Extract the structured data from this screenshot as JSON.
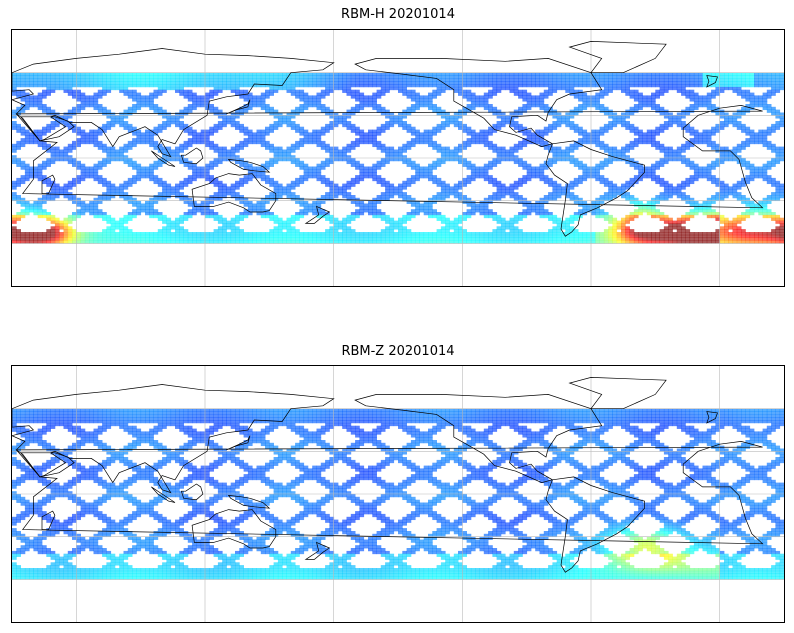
{
  "panels": [
    {
      "id": "top",
      "title": "RBM-H 20201014",
      "variant": "H"
    },
    {
      "id": "bottom",
      "title": "RBM-Z 20201014",
      "variant": "Z"
    }
  ],
  "map": {
    "projection": "PlateCarree",
    "central_longitude": 180,
    "lon_range": [
      30,
      390
    ],
    "lat_range": [
      -90,
      90
    ],
    "data_lat_range": [
      -60,
      60
    ],
    "gridlines": true,
    "grid_lon_step": 60,
    "grid_lat_step": 30,
    "colormap": "jet",
    "alpha": 0.65
  },
  "colors": {
    "coastline": "#000000",
    "gridline": "#bbbbbb",
    "background": "#ffffff"
  }
}
